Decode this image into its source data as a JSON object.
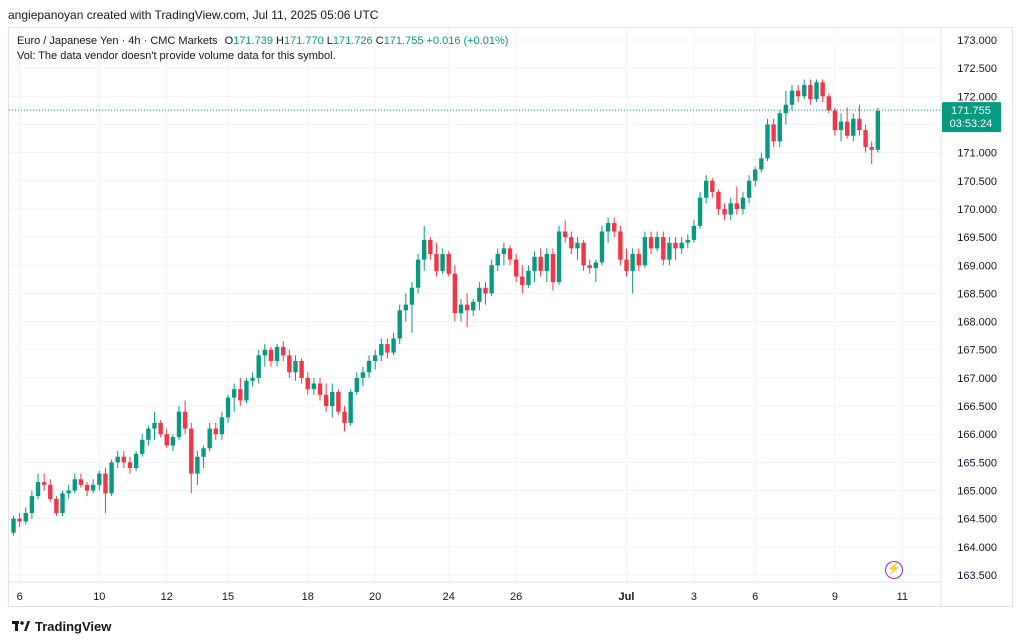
{
  "header": {
    "attribution": "angiepanoyan created with TradingView.com, Jul 11, 2025 05:06 UTC"
  },
  "legend": {
    "symbol": "Euro / Japanese Yen · 4h · CMC Markets",
    "o_label": "O",
    "o": "171.739",
    "h_label": "H",
    "h": "171.770",
    "l_label": "L",
    "l": "171.726",
    "c_label": "C",
    "c": "171.755",
    "change": "+0.016 (+0.01%)",
    "vol_note": "Vol: The data vendor doesn't provide volume data for this symbol."
  },
  "price_badge": {
    "price": "171.755",
    "countdown": "03:53:24"
  },
  "footer": {
    "brand": "TradingView"
  },
  "colors": {
    "up": "#089981",
    "down": "#f23645",
    "axis_text": "#131722",
    "grid": "#f0f3fa",
    "price_line": "#089981",
    "badge_bg": "#089981"
  },
  "icons": {
    "alert": "lightning-bolt-icon",
    "logo": "tradingview-logo-icon"
  },
  "chart_data": {
    "type": "candlestick",
    "title": "Euro / Japanese Yen · 4h · CMC Markets",
    "ylim": [
      163.3,
      173.25
    ],
    "y_ticks": [
      "173.000",
      "172.500",
      "172.000",
      "171.500",
      "171.000",
      "170.500",
      "170.000",
      "169.500",
      "169.000",
      "168.500",
      "168.000",
      "167.500",
      "167.000",
      "166.500",
      "166.000",
      "165.500",
      "165.000",
      "164.500",
      "164.000",
      "163.500"
    ],
    "x_ticks": [
      {
        "label": "6",
        "i": 1
      },
      {
        "label": "10",
        "i": 14
      },
      {
        "label": "12",
        "i": 25
      },
      {
        "label": "15",
        "i": 35
      },
      {
        "label": "18",
        "i": 48
      },
      {
        "label": "20",
        "i": 59
      },
      {
        "label": "24",
        "i": 71
      },
      {
        "label": "26",
        "i": 82
      },
      {
        "label": "Jul",
        "i": 100
      },
      {
        "label": "3",
        "i": 111
      },
      {
        "label": "6",
        "i": 121
      },
      {
        "label": "9",
        "i": 134
      },
      {
        "label": "11",
        "i": 145
      }
    ],
    "last_price": 171.755,
    "candles": [
      [
        164.25,
        164.55,
        164.2,
        164.5
      ],
      [
        164.5,
        164.6,
        164.35,
        164.45
      ],
      [
        164.45,
        164.7,
        164.4,
        164.6
      ],
      [
        164.6,
        165.0,
        164.5,
        164.9
      ],
      [
        164.9,
        165.3,
        164.85,
        165.15
      ],
      [
        165.15,
        165.3,
        165.0,
        165.1
      ],
      [
        165.1,
        165.2,
        164.8,
        164.85
      ],
      [
        164.85,
        164.9,
        164.55,
        164.6
      ],
      [
        164.6,
        165.0,
        164.55,
        164.95
      ],
      [
        164.95,
        165.1,
        164.85,
        165.0
      ],
      [
        165.0,
        165.3,
        164.95,
        165.2
      ],
      [
        165.2,
        165.3,
        165.05,
        165.1
      ],
      [
        165.1,
        165.15,
        164.9,
        165.0
      ],
      [
        165.0,
        165.2,
        164.95,
        165.1
      ],
      [
        165.1,
        165.35,
        165.0,
        165.3
      ],
      [
        165.3,
        165.4,
        164.6,
        164.95
      ],
      [
        164.95,
        165.55,
        164.9,
        165.5
      ],
      [
        165.5,
        165.7,
        165.4,
        165.6
      ],
      [
        165.6,
        165.7,
        165.4,
        165.5
      ],
      [
        165.5,
        165.6,
        165.3,
        165.4
      ],
      [
        165.4,
        165.7,
        165.35,
        165.65
      ],
      [
        165.65,
        166.0,
        165.6,
        165.9
      ],
      [
        165.9,
        166.15,
        165.8,
        166.1
      ],
      [
        166.1,
        166.4,
        165.9,
        166.2
      ],
      [
        166.2,
        166.25,
        165.95,
        166.0
      ],
      [
        166.0,
        166.1,
        165.75,
        165.8
      ],
      [
        165.8,
        166.0,
        165.7,
        165.95
      ],
      [
        165.95,
        166.5,
        165.9,
        166.4
      ],
      [
        166.4,
        166.6,
        166.0,
        166.1
      ],
      [
        166.1,
        166.2,
        164.95,
        165.3
      ],
      [
        165.3,
        165.7,
        165.1,
        165.6
      ],
      [
        165.6,
        165.8,
        165.4,
        165.75
      ],
      [
        165.75,
        166.2,
        165.7,
        166.1
      ],
      [
        166.1,
        166.2,
        165.9,
        166.0
      ],
      [
        166.0,
        166.4,
        165.9,
        166.3
      ],
      [
        166.3,
        166.7,
        166.2,
        166.65
      ],
      [
        166.65,
        166.9,
        166.4,
        166.8
      ],
      [
        166.8,
        167.0,
        166.5,
        166.6
      ],
      [
        166.6,
        167.0,
        166.55,
        166.95
      ],
      [
        166.95,
        167.1,
        166.85,
        167.0
      ],
      [
        167.0,
        167.5,
        166.9,
        167.4
      ],
      [
        167.4,
        167.6,
        167.2,
        167.5
      ],
      [
        167.5,
        167.55,
        167.2,
        167.3
      ],
      [
        167.3,
        167.6,
        167.2,
        167.55
      ],
      [
        167.55,
        167.65,
        167.3,
        167.4
      ],
      [
        167.4,
        167.5,
        167.0,
        167.1
      ],
      [
        167.1,
        167.4,
        166.95,
        167.3
      ],
      [
        167.3,
        167.35,
        166.9,
        167.0
      ],
      [
        167.0,
        167.1,
        166.7,
        166.8
      ],
      [
        166.8,
        167.0,
        166.7,
        166.9
      ],
      [
        166.9,
        167.0,
        166.6,
        166.7
      ],
      [
        166.7,
        166.9,
        166.4,
        166.5
      ],
      [
        166.5,
        166.9,
        166.3,
        166.75
      ],
      [
        166.75,
        166.8,
        166.35,
        166.4
      ],
      [
        166.4,
        166.5,
        166.05,
        166.2
      ],
      [
        166.2,
        166.8,
        166.15,
        166.75
      ],
      [
        166.75,
        167.1,
        166.7,
        167.0
      ],
      [
        167.0,
        167.2,
        166.85,
        167.1
      ],
      [
        167.1,
        167.4,
        167.0,
        167.3
      ],
      [
        167.3,
        167.5,
        167.15,
        167.4
      ],
      [
        167.4,
        167.7,
        167.3,
        167.6
      ],
      [
        167.6,
        167.7,
        167.35,
        167.45
      ],
      [
        167.45,
        167.8,
        167.4,
        167.7
      ],
      [
        167.7,
        168.3,
        167.6,
        168.2
      ],
      [
        168.2,
        168.5,
        168.0,
        168.3
      ],
      [
        168.3,
        168.7,
        167.8,
        168.6
      ],
      [
        168.6,
        169.2,
        168.5,
        169.1
      ],
      [
        169.1,
        169.7,
        168.9,
        169.45
      ],
      [
        169.45,
        169.5,
        169.1,
        169.2
      ],
      [
        169.2,
        169.4,
        168.8,
        168.9
      ],
      [
        168.9,
        169.3,
        168.85,
        169.2
      ],
      [
        169.2,
        169.25,
        168.8,
        168.85
      ],
      [
        168.85,
        169.0,
        168.0,
        168.15
      ],
      [
        168.15,
        168.4,
        168.0,
        168.3
      ],
      [
        168.3,
        168.5,
        167.9,
        168.2
      ],
      [
        168.2,
        168.4,
        168.1,
        168.35
      ],
      [
        168.35,
        168.7,
        168.2,
        168.6
      ],
      [
        168.6,
        168.7,
        168.3,
        168.5
      ],
      [
        168.5,
        169.1,
        168.45,
        169.0
      ],
      [
        169.0,
        169.3,
        168.9,
        169.2
      ],
      [
        169.2,
        169.4,
        169.0,
        169.3
      ],
      [
        169.3,
        169.35,
        169.0,
        169.1
      ],
      [
        169.1,
        169.2,
        168.7,
        168.8
      ],
      [
        168.8,
        169.0,
        168.5,
        168.65
      ],
      [
        168.65,
        169.0,
        168.6,
        168.9
      ],
      [
        168.9,
        169.25,
        168.7,
        169.15
      ],
      [
        169.15,
        169.3,
        168.8,
        168.9
      ],
      [
        168.9,
        169.3,
        168.7,
        169.2
      ],
      [
        169.2,
        169.3,
        168.55,
        168.7
      ],
      [
        168.7,
        169.7,
        168.65,
        169.6
      ],
      [
        169.6,
        169.8,
        169.4,
        169.5
      ],
      [
        169.5,
        169.6,
        169.2,
        169.3
      ],
      [
        169.3,
        169.5,
        169.1,
        169.4
      ],
      [
        169.4,
        169.45,
        168.9,
        169.0
      ],
      [
        169.0,
        169.1,
        168.85,
        168.95
      ],
      [
        168.95,
        169.1,
        168.7,
        169.05
      ],
      [
        169.05,
        169.7,
        169.0,
        169.6
      ],
      [
        169.6,
        169.85,
        169.4,
        169.75
      ],
      [
        169.75,
        169.85,
        169.5,
        169.6
      ],
      [
        169.6,
        169.7,
        169.0,
        169.1
      ],
      [
        169.1,
        169.3,
        168.8,
        168.9
      ],
      [
        168.9,
        169.3,
        168.5,
        169.2
      ],
      [
        169.2,
        169.3,
        168.9,
        169.0
      ],
      [
        169.0,
        169.6,
        168.95,
        169.5
      ],
      [
        169.5,
        169.6,
        169.2,
        169.3
      ],
      [
        169.3,
        169.6,
        169.25,
        169.5
      ],
      [
        169.5,
        169.6,
        169.0,
        169.1
      ],
      [
        169.1,
        169.5,
        169.0,
        169.4
      ],
      [
        169.4,
        169.5,
        169.1,
        169.3
      ],
      [
        169.3,
        169.5,
        169.2,
        169.4
      ],
      [
        169.4,
        169.55,
        169.3,
        169.45
      ],
      [
        169.45,
        169.8,
        169.4,
        169.7
      ],
      [
        169.7,
        170.3,
        169.65,
        170.2
      ],
      [
        170.2,
        170.6,
        170.1,
        170.5
      ],
      [
        170.5,
        170.55,
        170.2,
        170.3
      ],
      [
        170.3,
        170.35,
        169.9,
        170.0
      ],
      [
        170.0,
        170.1,
        169.8,
        169.9
      ],
      [
        169.9,
        170.2,
        169.8,
        170.1
      ],
      [
        170.1,
        170.4,
        169.9,
        170.0
      ],
      [
        170.0,
        170.3,
        169.9,
        170.2
      ],
      [
        170.2,
        170.6,
        170.1,
        170.5
      ],
      [
        170.5,
        170.75,
        170.4,
        170.7
      ],
      [
        170.7,
        171.0,
        170.65,
        170.9
      ],
      [
        170.9,
        171.6,
        170.85,
        171.5
      ],
      [
        171.5,
        171.6,
        171.1,
        171.2
      ],
      [
        171.2,
        171.75,
        171.1,
        171.7
      ],
      [
        171.7,
        172.1,
        171.5,
        171.85
      ],
      [
        171.85,
        172.2,
        171.75,
        172.1
      ],
      [
        172.1,
        172.2,
        171.9,
        172.0
      ],
      [
        172.0,
        172.3,
        171.95,
        172.2
      ],
      [
        172.2,
        172.3,
        171.85,
        171.95
      ],
      [
        171.95,
        172.3,
        171.9,
        172.25
      ],
      [
        172.25,
        172.3,
        171.9,
        172.0
      ],
      [
        172.0,
        172.05,
        171.7,
        171.75
      ],
      [
        171.75,
        171.8,
        171.3,
        171.4
      ],
      [
        171.4,
        171.7,
        171.2,
        171.55
      ],
      [
        171.55,
        171.8,
        171.25,
        171.3
      ],
      [
        171.3,
        171.7,
        171.2,
        171.6
      ],
      [
        171.6,
        171.85,
        171.3,
        171.4
      ],
      [
        171.4,
        171.5,
        171.0,
        171.1
      ],
      [
        171.1,
        171.2,
        170.8,
        171.05
      ],
      [
        171.05,
        171.8,
        171.0,
        171.739
      ]
    ]
  }
}
